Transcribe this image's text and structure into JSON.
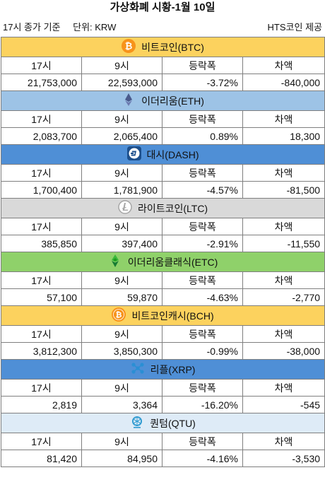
{
  "title": "가상화폐 시황-1월 10일",
  "subhead": {
    "basis": "17시 종가 기준",
    "unit": "단위: KRW",
    "provider": "HTS코인 제공"
  },
  "columns": [
    "17시",
    "9시",
    "등락폭",
    "차액"
  ],
  "coins": [
    {
      "name": "비트코인(BTC)",
      "icon": "bitcoin-icon",
      "bg": "#fcd25e",
      "values": [
        "21,753,000",
        "22,593,000",
        "-3.72%",
        "-840,000"
      ]
    },
    {
      "name": "이더리움(ETH)",
      "icon": "ethereum-icon",
      "bg": "#9dc3e6",
      "values": [
        "2,083,700",
        "2,065,400",
        "0.89%",
        "18,300"
      ]
    },
    {
      "name": "대시(DASH)",
      "icon": "dash-icon",
      "bg": "#4f8fd6",
      "values": [
        "1,700,400",
        "1,781,900",
        "-4.57%",
        "-81,500"
      ]
    },
    {
      "name": "라이트코인(LTC)",
      "icon": "litecoin-icon",
      "bg": "#d9d9d9",
      "values": [
        "385,850",
        "397,400",
        "-2.91%",
        "-11,550"
      ]
    },
    {
      "name": "이더리움클래식(ETC)",
      "icon": "ethereum-classic-icon",
      "bg": "#8fd16a",
      "values": [
        "57,100",
        "59,870",
        "-4.63%",
        "-2,770"
      ]
    },
    {
      "name": "비트코인캐시(BCH)",
      "icon": "bitcoin-cash-icon",
      "bg": "#fcd25e",
      "values": [
        "3,812,300",
        "3,850,300",
        "-0.99%",
        "-38,000"
      ]
    },
    {
      "name": "리플(XRP)",
      "icon": "ripple-icon",
      "bg": "#4f8fd6",
      "values": [
        "2,819",
        "3,364",
        "-16.20%",
        "-545"
      ]
    },
    {
      "name": "퀀텀(QTU)",
      "icon": "qtum-icon",
      "bg": "#deebf7",
      "values": [
        "81,420",
        "84,950",
        "-4.16%",
        "-3,530"
      ]
    }
  ]
}
